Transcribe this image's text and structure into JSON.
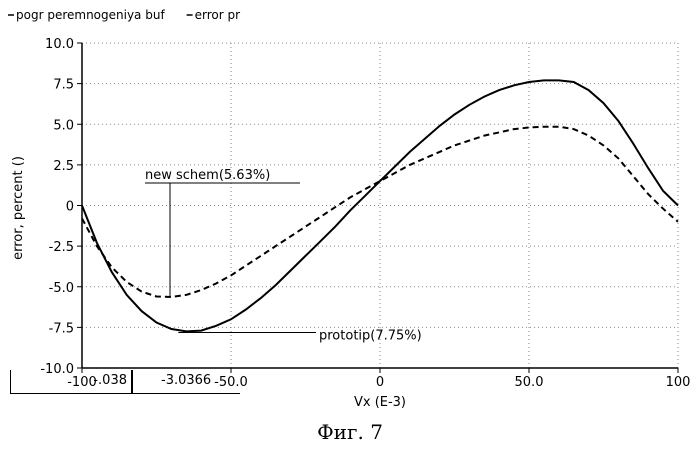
{
  "chart_data": {
    "type": "line",
    "legend": [
      {
        "name": "pogr peremnogeniya buf",
        "style": "solid"
      },
      {
        "name": "error pr",
        "style": "solid"
      }
    ],
    "xlabel": "Vx (E-3)",
    "ylabel": "error, percent ()",
    "xlim": [
      -100,
      100
    ],
    "ylim": [
      -10,
      10
    ],
    "xticks": [
      "-100",
      "-50.0",
      "0",
      "50.0",
      "100"
    ],
    "yticks": [
      "10.0",
      "7.5",
      "5.0",
      "2.5",
      "0",
      "-2.5",
      "-5.0",
      "-7.5",
      "-10.0"
    ],
    "x_tick_values": [
      -100,
      -50,
      0,
      50,
      100
    ],
    "y_tick_values": [
      10,
      7.5,
      5,
      2.5,
      0,
      -2.5,
      -5,
      -7.5,
      -10
    ],
    "grid": true,
    "series": [
      {
        "style": "solid",
        "x": [
          -100,
          -95,
          -90,
          -85,
          -80,
          -75,
          -70,
          -65,
          -60,
          -55,
          -50,
          -45,
          -40,
          -35,
          -30,
          -25,
          -20,
          -15,
          -10,
          -5,
          0,
          5,
          10,
          15,
          20,
          25,
          30,
          35,
          40,
          45,
          50,
          55,
          60,
          65,
          70,
          75,
          80,
          85,
          90,
          95,
          100
        ],
        "y": [
          0,
          -2.3,
          -4.1,
          -5.5,
          -6.5,
          -7.2,
          -7.6,
          -7.75,
          -7.7,
          -7.4,
          -7.0,
          -6.4,
          -5.7,
          -4.9,
          -4.0,
          -3.1,
          -2.2,
          -1.3,
          -0.3,
          0.6,
          1.5,
          2.4,
          3.3,
          4.1,
          4.9,
          5.6,
          6.2,
          6.7,
          7.1,
          7.4,
          7.6,
          7.7,
          7.7,
          7.6,
          7.1,
          6.3,
          5.2,
          3.8,
          2.3,
          0.9,
          0
        ]
      },
      {
        "style": "dashed",
        "x": [
          -100,
          -95,
          -90,
          -85,
          -80,
          -75,
          -70,
          -65,
          -60,
          -55,
          -50,
          -45,
          -40,
          -35,
          -30,
          -25,
          -20,
          -15,
          -10,
          -5,
          0,
          5,
          10,
          15,
          20,
          25,
          30,
          35,
          40,
          45,
          50,
          55,
          60,
          65,
          70,
          75,
          80,
          85,
          90,
          95,
          100
        ],
        "y": [
          -0.8,
          -2.5,
          -3.8,
          -4.7,
          -5.3,
          -5.6,
          -5.63,
          -5.5,
          -5.2,
          -4.8,
          -4.3,
          -3.7,
          -3.1,
          -2.5,
          -1.9,
          -1.3,
          -0.7,
          -0.1,
          0.5,
          1.0,
          1.5,
          2.0,
          2.5,
          2.9,
          3.3,
          3.7,
          4.0,
          4.3,
          4.5,
          4.7,
          4.8,
          4.85,
          4.85,
          4.7,
          4.3,
          3.7,
          2.9,
          1.8,
          0.7,
          -0.2,
          -1.0
        ]
      }
    ],
    "annotations": [
      {
        "text": "new schem(5.63%)",
        "point": [
          -70,
          -5.63
        ]
      },
      {
        "text": "prototip(7.75%)",
        "point": [
          -65,
          -7.75
        ]
      }
    ]
  },
  "cursor_readout": [
    "-.038",
    "-3.0366"
  ],
  "figure_caption": "Фиг. 7"
}
